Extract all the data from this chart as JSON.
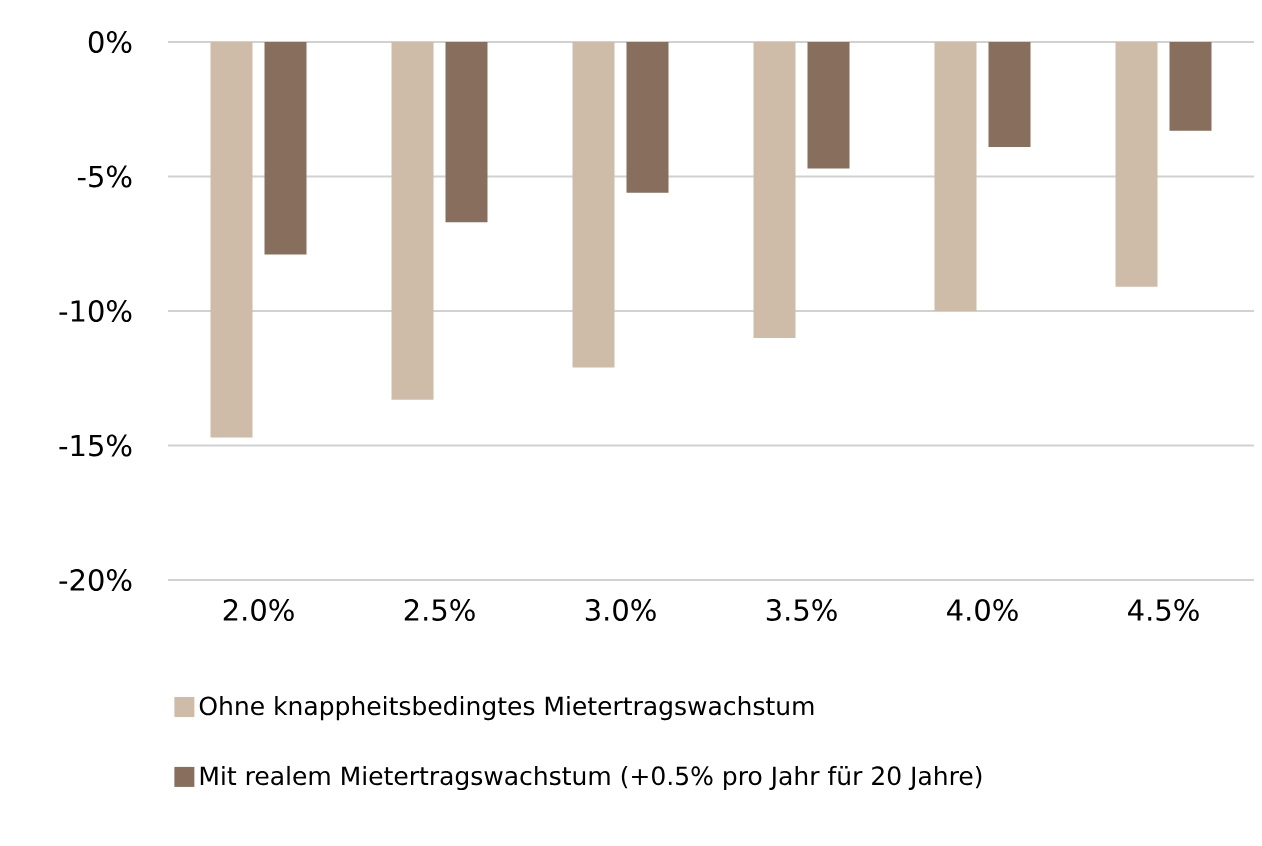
{
  "chart_data": {
    "type": "bar",
    "categories": [
      "2.0%",
      "2.5%",
      "3.0%",
      "3.5%",
      "4.0%",
      "4.5%"
    ],
    "series": [
      {
        "name": "Ohne knappheitsbedingtes Mietertragswachstum",
        "color": "#cebba8",
        "values": [
          -14.7,
          -13.3,
          -12.1,
          -11.0,
          -10.0,
          -9.1
        ]
      },
      {
        "name": "Mit realem Mietertragswachstum (+0.5% pro Jahr für 20 Jahre)",
        "color": "#886e5c",
        "values": [
          -7.9,
          -6.7,
          -5.6,
          -4.7,
          -3.9,
          -3.3
        ]
      }
    ],
    "ylim": [
      -20,
      0
    ],
    "yticks": [
      {
        "value": 0,
        "label": "0%"
      },
      {
        "value": -5,
        "label": "-5%"
      },
      {
        "value": -10,
        "label": "-10%"
      },
      {
        "value": -15,
        "label": "-15%"
      },
      {
        "value": -20,
        "label": "-20%"
      }
    ],
    "grid": "y",
    "legend": "bottom"
  }
}
